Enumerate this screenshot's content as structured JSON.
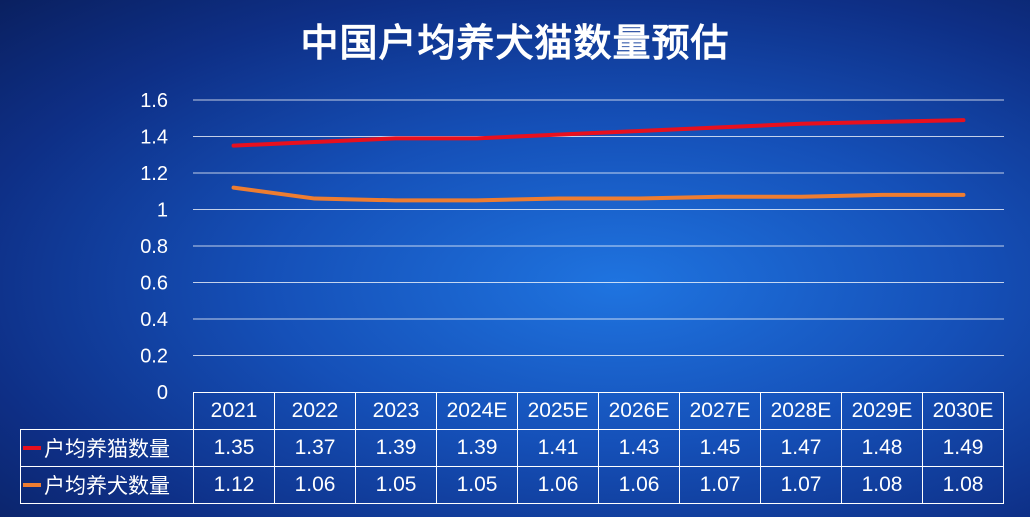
{
  "title": "中国户均养犬猫数量预估",
  "chart_data": {
    "type": "line",
    "categories": [
      "2021",
      "2022",
      "2023",
      "2024E",
      "2025E",
      "2026E",
      "2027E",
      "2028E",
      "2029E",
      "2030E"
    ],
    "series": [
      {
        "name": "户均养猫数量",
        "color": "#e8101e",
        "values": [
          1.35,
          1.37,
          1.39,
          1.39,
          1.41,
          1.43,
          1.45,
          1.47,
          1.48,
          1.49
        ]
      },
      {
        "name": "户均养犬数量",
        "color": "#ee7d31",
        "values": [
          1.12,
          1.06,
          1.05,
          1.05,
          1.06,
          1.06,
          1.07,
          1.07,
          1.08,
          1.08
        ]
      }
    ],
    "y_ticks": [
      "0",
      "0.2",
      "0.4",
      "0.6",
      "0.8",
      "1",
      "1.2",
      "1.4",
      "1.6"
    ],
    "ylim": [
      0,
      1.6
    ],
    "grid": true,
    "legend": "data-table"
  },
  "colors": {
    "grid": "#ffffff",
    "text": "#ffffff"
  }
}
